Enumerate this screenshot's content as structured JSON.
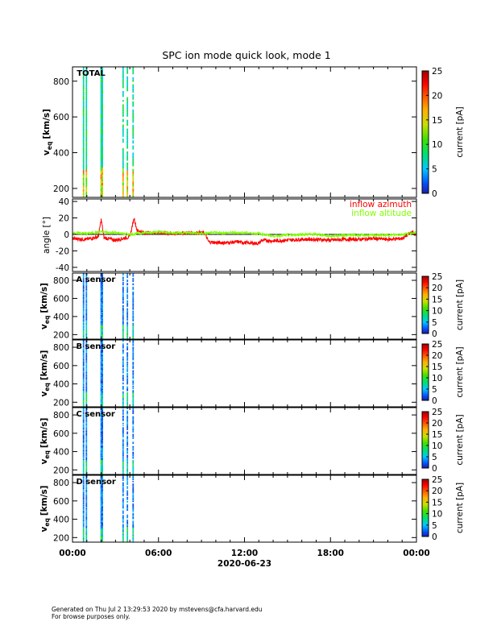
{
  "title": "SPC ion mode quick look, mode 1",
  "footer": {
    "line1": "Generated on Thu Jul  2 13:29:53 2020 by mstevens@cfa.harvard.edu",
    "line2": "For browse purposes only."
  },
  "x_axis": {
    "tick_labels": [
      "00:00",
      "06:00",
      "12:00",
      "18:00",
      "00:00"
    ],
    "tick_hours": [
      0,
      6,
      12,
      18,
      24
    ],
    "date_label": "2020-06-23",
    "range_hours": [
      0,
      24
    ]
  },
  "colors": {
    "azimuth": "#ff0000",
    "altitude": "#7fff00",
    "zero_line": "#000000"
  },
  "chart_data": [
    {
      "type": "heatmap",
      "panel_label": "TOTAL",
      "ylabel_main": "v",
      "ylabel_sub": "eq",
      "ylabel_unit": "[km/s]",
      "y_tick_labels": [
        "200",
        "400",
        "600",
        "800"
      ],
      "y_ticks": [
        200,
        400,
        600,
        800
      ],
      "ylim": [
        150,
        880
      ],
      "colorbar_label": "current [pA]",
      "colorbar_tick_labels": [
        "0",
        "5",
        "10",
        "15",
        "20",
        "25"
      ],
      "colorbar_range": [
        0,
        25
      ],
      "x_unit": "hours",
      "data_intervals": [
        [
          0.72,
          0.78
        ],
        [
          0.92,
          0.96
        ],
        [
          1.95,
          2.12
        ],
        [
          3.48,
          3.55
        ],
        [
          3.78,
          3.82
        ],
        [
          4.18,
          4.23
        ]
      ],
      "max_current_pA": 15
    },
    {
      "type": "line",
      "ylabel": "angle [°]",
      "y_tick_labels": [
        "-40",
        "-20",
        "0",
        "20",
        "40"
      ],
      "y_ticks": [
        -40,
        -20,
        0,
        20,
        40
      ],
      "ylim": [
        -45,
        43
      ],
      "x_unit": "hours",
      "series": [
        {
          "name": "inflow azimuth",
          "color": "#ff0000",
          "x": [
            0,
            1,
            1.8,
            2,
            2.2,
            3,
            4,
            4.3,
            4.5,
            5,
            6,
            7,
            8,
            9.2,
            9.5,
            10,
            11,
            11.5,
            12,
            13,
            13.2,
            14,
            15,
            16,
            17,
            18,
            19,
            20,
            21,
            22,
            23,
            23.7,
            24
          ],
          "values": [
            -5,
            -6,
            -3,
            18,
            -4,
            -7,
            -3,
            20,
            5,
            2,
            2,
            1,
            2,
            2,
            -9,
            -10,
            -10,
            -9,
            -10,
            -11,
            -7,
            -8,
            -7,
            -6,
            -6,
            -7,
            -6,
            -6,
            -5,
            -6,
            -5,
            3,
            -2
          ]
        },
        {
          "name": "inflow altitude",
          "color": "#7fff00",
          "x": [
            0,
            1,
            2,
            3,
            4,
            5,
            6,
            7,
            8,
            9,
            10,
            11,
            12,
            13,
            14,
            15,
            16,
            17,
            18,
            19,
            20,
            21,
            22,
            23,
            24
          ],
          "values": [
            2,
            1,
            3,
            2,
            0,
            2,
            3,
            2,
            2,
            1,
            2,
            2,
            2,
            1,
            -2,
            -1,
            0,
            0,
            -2,
            -1,
            -1,
            -1,
            -1,
            0,
            2
          ]
        }
      ]
    },
    {
      "type": "heatmap",
      "panel_label": "A sensor",
      "ylabel_main": "v",
      "ylabel_sub": "eq",
      "ylabel_unit": "[km/s]",
      "y_tick_labels": [
        "200",
        "400",
        "600",
        "800"
      ],
      "y_ticks": [
        200,
        400,
        600,
        800
      ],
      "ylim": [
        150,
        880
      ],
      "colorbar_label": "current [pA]",
      "colorbar_tick_labels": [
        "0",
        "5",
        "10",
        "15",
        "20",
        "25"
      ],
      "colorbar_range": [
        0,
        25
      ],
      "x_unit": "hours",
      "data_intervals": [
        [
          0.72,
          0.78
        ],
        [
          0.92,
          0.96
        ],
        [
          1.95,
          2.12
        ],
        [
          3.48,
          3.55
        ],
        [
          3.78,
          3.82
        ],
        [
          4.18,
          4.23
        ]
      ],
      "max_current_pA": 8
    },
    {
      "type": "heatmap",
      "panel_label": "B sensor",
      "ylabel_main": "v",
      "ylabel_sub": "eq",
      "ylabel_unit": "[km/s]",
      "y_tick_labels": [
        "200",
        "400",
        "600",
        "800"
      ],
      "y_ticks": [
        200,
        400,
        600,
        800
      ],
      "ylim": [
        150,
        880
      ],
      "colorbar_label": "current [pA]",
      "colorbar_tick_labels": [
        "0",
        "5",
        "10",
        "15",
        "20",
        "25"
      ],
      "colorbar_range": [
        0,
        25
      ],
      "x_unit": "hours",
      "data_intervals": [
        [
          0.72,
          0.78
        ],
        [
          0.92,
          0.96
        ],
        [
          1.95,
          2.12
        ],
        [
          3.48,
          3.55
        ],
        [
          3.78,
          3.82
        ],
        [
          4.18,
          4.23
        ]
      ],
      "max_current_pA": 8
    },
    {
      "type": "heatmap",
      "panel_label": "C sensor",
      "ylabel_main": "v",
      "ylabel_sub": "eq",
      "ylabel_unit": "[km/s]",
      "y_tick_labels": [
        "200",
        "400",
        "600",
        "800"
      ],
      "y_ticks": [
        200,
        400,
        600,
        800
      ],
      "ylim": [
        150,
        880
      ],
      "colorbar_label": "current [pA]",
      "colorbar_tick_labels": [
        "0",
        "5",
        "10",
        "15",
        "20",
        "25"
      ],
      "colorbar_range": [
        0,
        25
      ],
      "x_unit": "hours",
      "data_intervals": [
        [
          0.72,
          0.78
        ],
        [
          0.92,
          0.96
        ],
        [
          1.95,
          2.12
        ],
        [
          3.48,
          3.55
        ],
        [
          3.78,
          3.82
        ],
        [
          4.18,
          4.23
        ]
      ],
      "max_current_pA": 8
    },
    {
      "type": "heatmap",
      "panel_label": "D sensor",
      "ylabel_main": "v",
      "ylabel_sub": "eq",
      "ylabel_unit": "[km/s]",
      "y_tick_labels": [
        "200",
        "400",
        "600",
        "800"
      ],
      "y_ticks": [
        200,
        400,
        600,
        800
      ],
      "ylim": [
        150,
        880
      ],
      "colorbar_label": "current [pA]",
      "colorbar_tick_labels": [
        "0",
        "5",
        "10",
        "15",
        "20",
        "25"
      ],
      "colorbar_range": [
        0,
        25
      ],
      "x_unit": "hours",
      "data_intervals": [
        [
          0.72,
          0.78
        ],
        [
          0.92,
          0.96
        ],
        [
          1.95,
          2.12
        ],
        [
          3.48,
          3.55
        ],
        [
          3.78,
          3.82
        ],
        [
          4.18,
          4.23
        ]
      ],
      "max_current_pA": 8
    }
  ]
}
